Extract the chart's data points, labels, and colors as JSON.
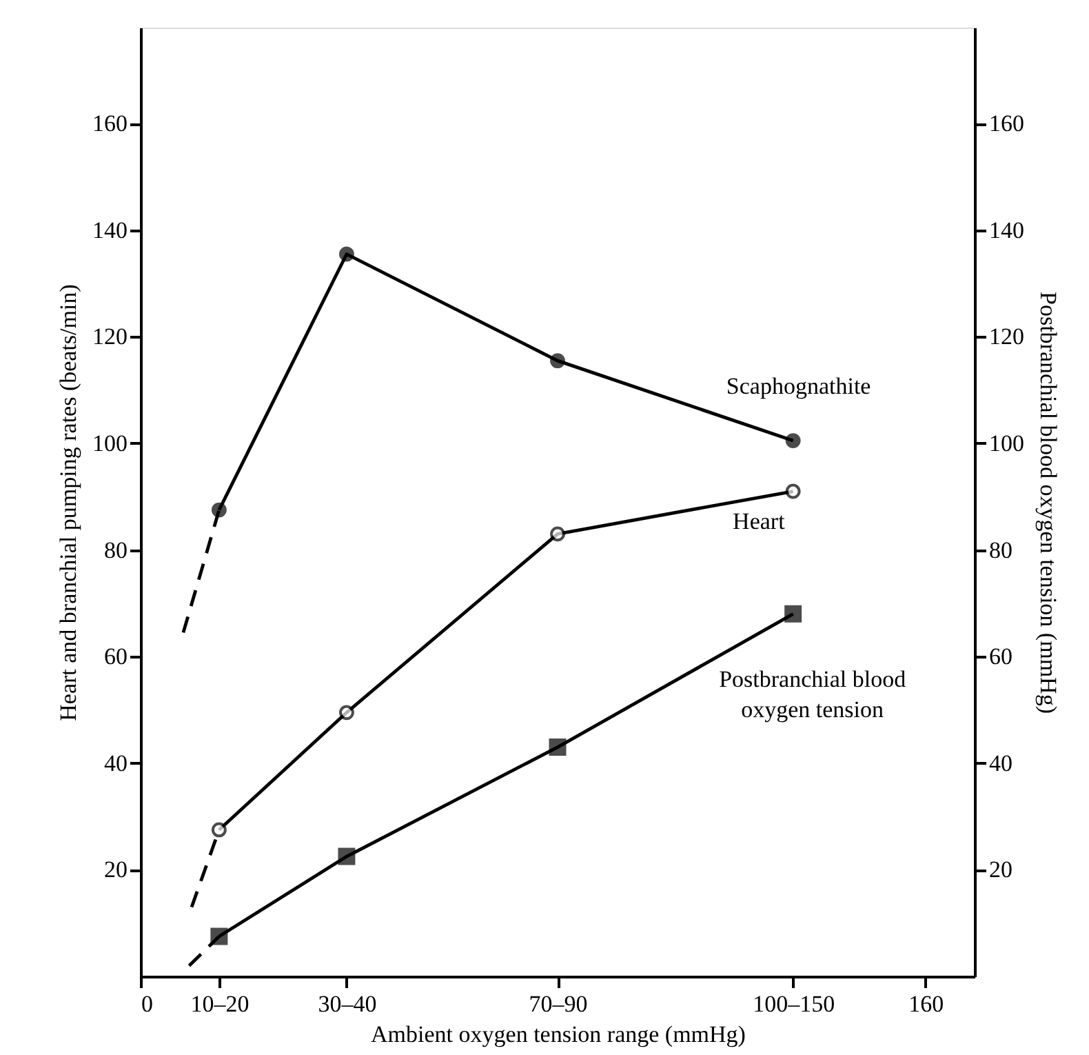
{
  "chart_data": {
    "type": "line",
    "xlabel": "Ambient oxygen tension range (mmHg)",
    "ylabel": "Heart and branchial pumping rates (beats/min)",
    "y2label": "Postbranchial blood oxygen tension (mmHg)",
    "x": [
      16,
      42,
      85,
      133
    ],
    "xlim": [
      0,
      170
    ],
    "xticks": [
      0,
      {
        "value": 16,
        "label": "10–20"
      },
      {
        "value": 42,
        "label": "30–40"
      },
      {
        "value": 85,
        "label": "70–90"
      },
      {
        "value": 133,
        "label": "100–150"
      },
      160
    ],
    "ylim": [
      0,
      178
    ],
    "yticks": [
      20,
      40,
      60,
      80,
      100,
      120,
      140,
      160
    ],
    "y2lim": [
      0,
      178
    ],
    "y2ticks": [
      20,
      40,
      60,
      80,
      100,
      120,
      140,
      160
    ],
    "grid": false,
    "series": [
      {
        "name": "Scaphognathite",
        "color": "#000000",
        "values": [
          87.5,
          135.5,
          115.5,
          100.5
        ],
        "marker": "circle",
        "line_style": "solid"
      },
      {
        "name": "Heart",
        "color": "#000000",
        "values": [
          27.5,
          49.5,
          83,
          91
        ],
        "marker": "circle",
        "line_style": "solid"
      },
      {
        "name": "Postbranchial blood oxygen tension",
        "color": "#000000",
        "values": [
          7.5,
          22.5,
          43,
          68
        ],
        "marker": "square",
        "line_style": "solid"
      },
      {
        "type": "line",
        "color": "#000000",
        "x": [
          8.7,
          16
        ],
        "values": [
          64.5,
          87.5
        ],
        "marker": "none",
        "line_style": "dashed"
      },
      {
        "type": "line",
        "color": "#000000",
        "x": [
          10.4,
          16
        ],
        "values": [
          13,
          27.5
        ],
        "marker": "none",
        "line_style": "dashed"
      },
      {
        "type": "line",
        "color": "#000000",
        "x": [
          9.9,
          16
        ],
        "values": [
          2,
          7.5
        ],
        "marker": "none",
        "line_style": "dashed"
      }
    ]
  }
}
